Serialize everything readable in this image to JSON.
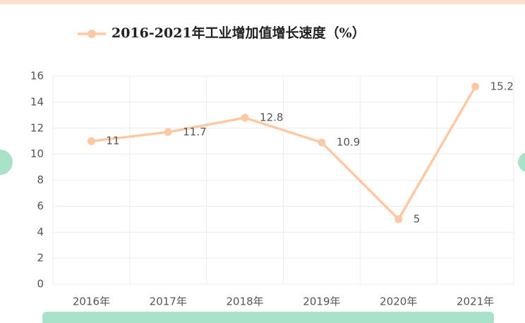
{
  "chart_data": {
    "type": "line",
    "categories": [
      "2016年",
      "2017年",
      "2018年",
      "2019年",
      "2020年",
      "2021年"
    ],
    "series": [
      {
        "name": "2016-2021年工业增加值增长速度（%）",
        "color": "#fdc9a5",
        "values": [
          11,
          11.7,
          12.8,
          10.9,
          5,
          15.2
        ]
      }
    ],
    "ylim": [
      0,
      16
    ],
    "yticks": [
      0,
      2,
      4,
      6,
      8,
      10,
      12,
      14,
      16
    ],
    "grid": true,
    "legend": "top",
    "data_labels": true
  }
}
